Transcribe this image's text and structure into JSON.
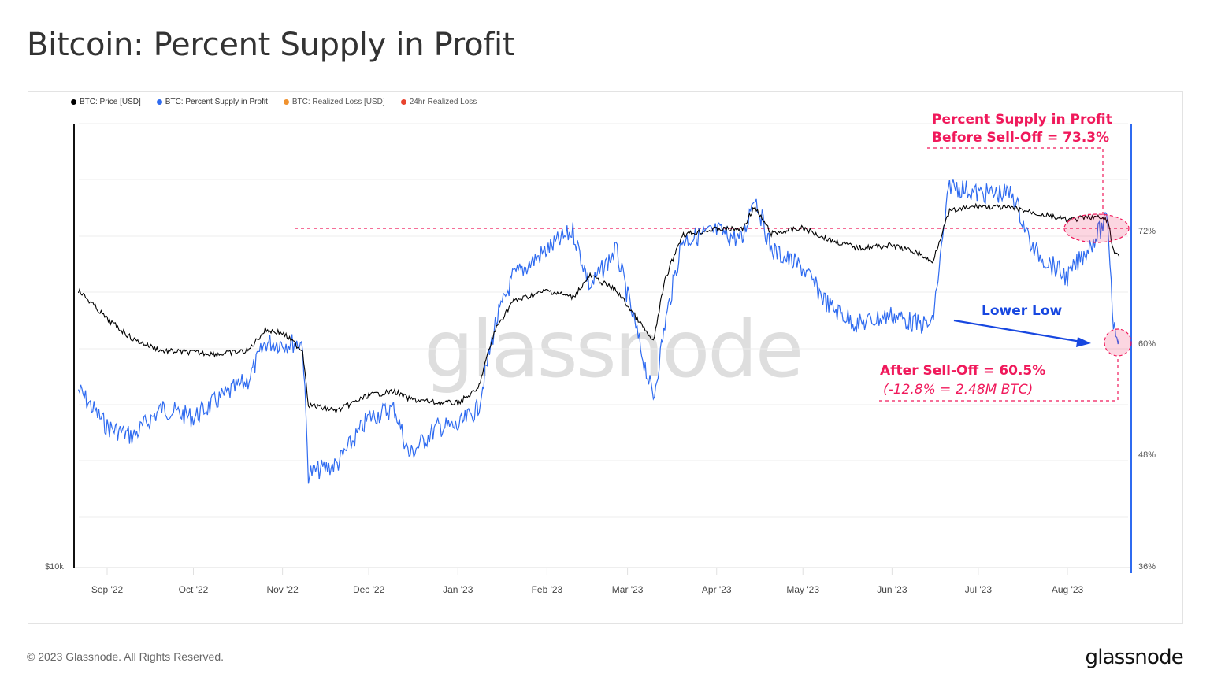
{
  "title": "Bitcoin: Percent Supply in Profit",
  "legend": [
    {
      "label": "BTC: Price [USD]",
      "color": "#000000",
      "active": true
    },
    {
      "label": "BTC: Percent Supply in Profit",
      "color": "#2f6bf0",
      "active": true
    },
    {
      "label": "BTC: Realized Loss [USD]",
      "color": "#f0922e",
      "active": false
    },
    {
      "label": "24hr Realized Loss",
      "color": "#e8432e",
      "active": false
    }
  ],
  "watermark": "glassnode",
  "annotations": {
    "before_line1": "Percent Supply in Profit",
    "before_line2": "Before Sell-Off = 73.3%",
    "lower_low": "Lower Low",
    "after_line1": "After Sell-Off = 60.5%",
    "after_line2": "(-12.8% = 2.48M BTC)"
  },
  "footer": {
    "copyright": "© 2023 Glassnode. All Rights Reserved.",
    "logo": "glassnode"
  },
  "colors": {
    "price": "#000000",
    "supply": "#2f6bf0",
    "annotation_pink": "#f0195b",
    "annotation_blue": "#1747e0",
    "right_axis": "#2f6bf0"
  },
  "chart_data": {
    "type": "line",
    "title": "Bitcoin: Percent Supply in Profit",
    "x_tick_labels": [
      "Sep '22",
      "Oct '22",
      "Nov '22",
      "Dec '22",
      "Jan '23",
      "Feb '23",
      "Mar '23",
      "Apr '23",
      "May '23",
      "Jun '23",
      "Jul '23",
      "Aug '23"
    ],
    "left_axis": {
      "label": "BTC: Price [USD]",
      "scale": "log",
      "visible_ticks": [
        "$10k"
      ]
    },
    "right_axis": {
      "label": "BTC: Percent Supply in Profit",
      "ticks": [
        "72%",
        "60%",
        "48%",
        "36%"
      ],
      "range": [
        36,
        80
      ]
    },
    "grid": true,
    "legend_position": "top-left",
    "x": [
      "2022-08-22",
      "2022-09-01",
      "2022-09-10",
      "2022-09-20",
      "2022-10-01",
      "2022-10-10",
      "2022-10-20",
      "2022-10-26",
      "2022-11-01",
      "2022-11-08",
      "2022-11-10",
      "2022-11-20",
      "2022-12-01",
      "2022-12-10",
      "2022-12-15",
      "2022-12-25",
      "2023-01-01",
      "2023-01-08",
      "2023-01-14",
      "2023-01-20",
      "2023-02-01",
      "2023-02-10",
      "2023-02-16",
      "2023-02-25",
      "2023-03-10",
      "2023-03-14",
      "2023-03-20",
      "2023-04-01",
      "2023-04-10",
      "2023-04-14",
      "2023-04-20",
      "2023-05-01",
      "2023-05-10",
      "2023-05-20",
      "2023-06-01",
      "2023-06-10",
      "2023-06-15",
      "2023-06-21",
      "2023-07-01",
      "2023-07-13",
      "2023-07-20",
      "2023-08-01",
      "2023-08-10",
      "2023-08-15",
      "2023-08-17",
      "2023-08-19"
    ],
    "series": [
      {
        "name": "BTC: Percent Supply in Profit",
        "unit": "%",
        "values": [
          55,
          51,
          50,
          53,
          52,
          54,
          56,
          60,
          60,
          60,
          46,
          47,
          52,
          53,
          48,
          51,
          51,
          53,
          62,
          67,
          70,
          72,
          66,
          70,
          54,
          62,
          71,
          72,
          71,
          76,
          70,
          68,
          64,
          62,
          63,
          62,
          62,
          77,
          76,
          76,
          70,
          67,
          71,
          73.3,
          62,
          60.5
        ]
      },
      {
        "name": "BTC: Price [USD]",
        "unit": "USD",
        "values": [
          23500,
          21500,
          20200,
          19500,
          19400,
          19300,
          19500,
          20800,
          20600,
          19500,
          16500,
          16200,
          17000,
          17200,
          16800,
          16600,
          16600,
          17300,
          20800,
          22700,
          23500,
          23000,
          24600,
          23500,
          20000,
          24200,
          27900,
          28400,
          28400,
          30400,
          28000,
          28500,
          27500,
          26800,
          27000,
          26400,
          25600,
          30000,
          30500,
          30300,
          29900,
          29200,
          29500,
          29200,
          26500,
          26100
        ]
      }
    ],
    "reference_lines": [
      {
        "type": "horizontal-dashed",
        "value_pct": 73.3,
        "color": "#f0195b"
      },
      {
        "type": "horizontal-dashed",
        "value_pct": 54.5,
        "color": "#f0195b"
      }
    ]
  }
}
